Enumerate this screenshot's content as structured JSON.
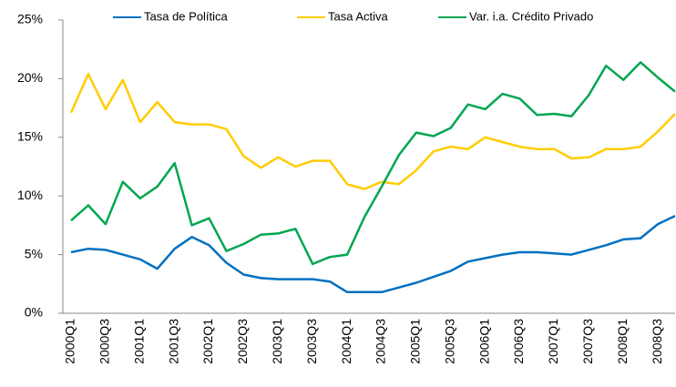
{
  "chart_data": {
    "type": "line",
    "categories": [
      "2000Q1",
      null,
      "2000Q3",
      null,
      "2001Q1",
      null,
      "2001Q3",
      null,
      "2002Q1",
      null,
      "2002Q3",
      null,
      "2003Q1",
      null,
      "2003Q3",
      null,
      "2004Q1",
      null,
      "2004Q3",
      null,
      "2005Q1",
      null,
      "2005Q3",
      null,
      "2006Q1",
      null,
      "2006Q3",
      null,
      "2007Q1",
      null,
      "2007Q3",
      null,
      "2008Q1",
      null,
      "2008Q3",
      null
    ],
    "series": [
      {
        "name": "Tasa de Política",
        "color": "#0070c0",
        "values": [
          5.2,
          5.5,
          5.4,
          5.0,
          4.6,
          3.8,
          5.5,
          6.5,
          5.8,
          4.3,
          3.3,
          3.0,
          2.9,
          2.9,
          2.9,
          2.7,
          1.8,
          1.8,
          1.8,
          2.2,
          2.6,
          3.1,
          3.6,
          4.4,
          4.7,
          5.0,
          5.2,
          5.2,
          5.1,
          5.0,
          5.4,
          5.8,
          6.3,
          6.4,
          7.6,
          8.3
        ]
      },
      {
        "name": "Tasa Activa",
        "color": "#ffcc00",
        "values": [
          17.1,
          20.4,
          17.4,
          19.9,
          16.3,
          18.0,
          16.3,
          16.1,
          16.1,
          15.7,
          13.4,
          12.4,
          13.3,
          12.5,
          13.0,
          13.0,
          11.0,
          10.6,
          11.2,
          11.0,
          12.2,
          13.8,
          14.2,
          14.0,
          15.0,
          14.6,
          14.2,
          14.0,
          14.0,
          13.2,
          13.3,
          14.0,
          14.0,
          14.2,
          15.5,
          17.0
        ]
      },
      {
        "name": "Var. i.a. Crédito Privado",
        "color": "#00a651",
        "values": [
          7.9,
          9.2,
          7.6,
          11.2,
          9.8,
          10.8,
          12.8,
          7.5,
          8.1,
          5.3,
          5.9,
          6.7,
          6.8,
          7.2,
          4.2,
          4.8,
          5.0,
          8.2,
          10.8,
          13.5,
          15.4,
          15.1,
          15.8,
          17.8,
          17.4,
          18.7,
          18.3,
          16.9,
          17.0,
          16.8,
          18.6,
          21.1,
          19.9,
          21.4,
          20.1,
          18.9
        ]
      }
    ],
    "ylim": [
      0,
      25
    ],
    "yticks": [
      {
        "value": 0,
        "label": "0%"
      },
      {
        "value": 5,
        "label": "5%"
      },
      {
        "value": 10,
        "label": "10%"
      },
      {
        "value": 15,
        "label": "15%"
      },
      {
        "value": 20,
        "label": "20%"
      },
      {
        "value": 25,
        "label": "25%"
      }
    ],
    "legend": "top"
  }
}
